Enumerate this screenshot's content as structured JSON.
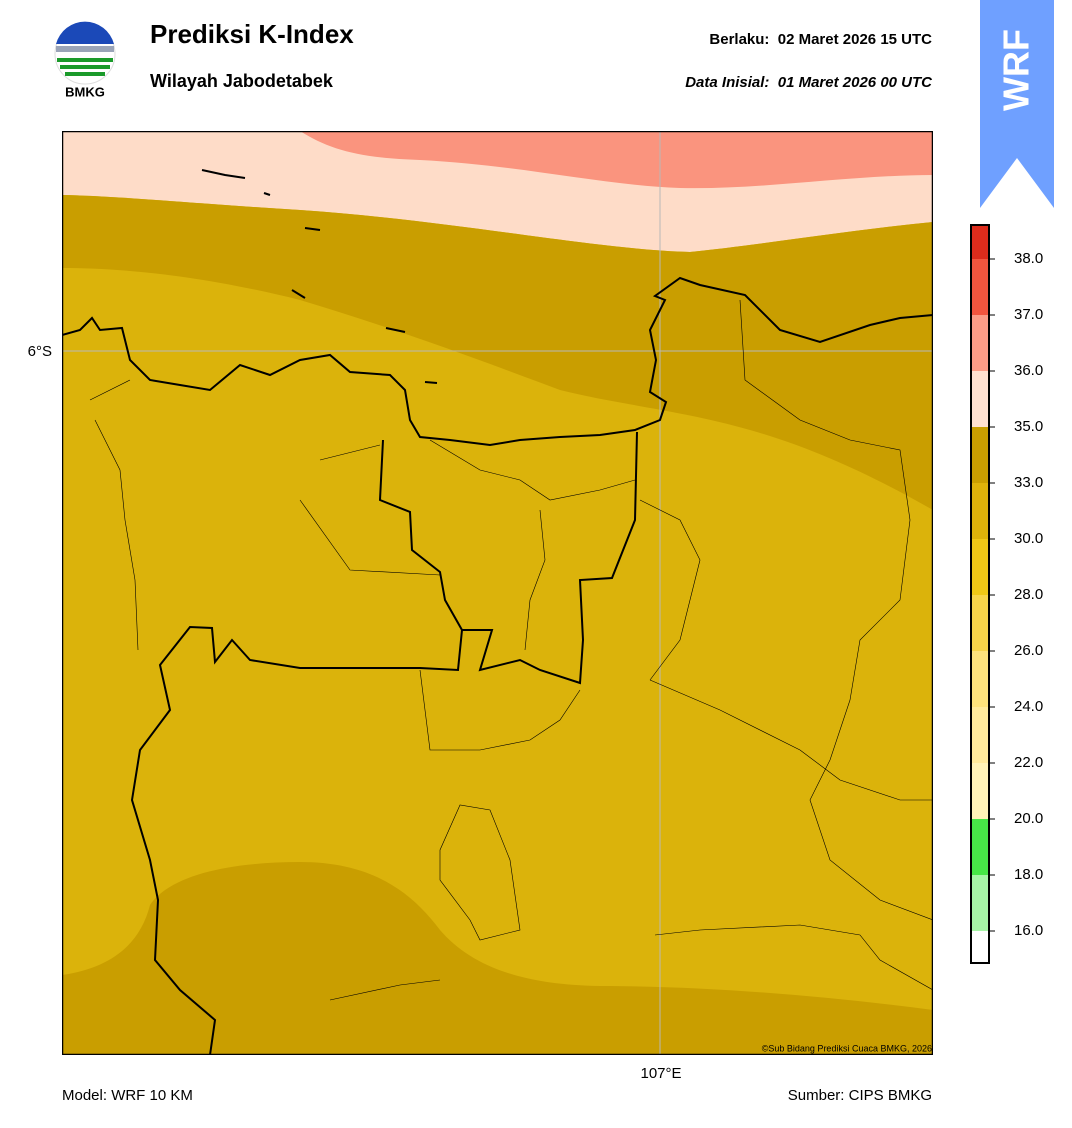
{
  "logo": {
    "label": "BMKG"
  },
  "header": {
    "title": "Prediksi K-Index",
    "subtitle": "Wilayah Jabodetabek",
    "valid": "Berlaku:  02 Maret 2026 15 UTC",
    "init": "Data Inisial:  01 Maret 2026 00 UTC"
  },
  "badge": "WRF",
  "map": {
    "lat_label": "6°S",
    "lon_label": "107°E",
    "credit": "©Sub Bidang Prediksi Cuaca BMKG, 2026"
  },
  "colorbar": {
    "labels": [
      "16.0",
      "18.0",
      "20.0",
      "22.0",
      "24.0",
      "26.0",
      "28.0",
      "30.0",
      "33.0",
      "35.0",
      "36.0",
      "37.0",
      "38.0"
    ],
    "colors": [
      "#ffffff",
      "#a6f5a6",
      "#47e647",
      "#fff3b8",
      "#ffea9c",
      "#fde27c",
      "#f7d44a",
      "#efc716",
      "#ddb20a",
      "#c99e00",
      "#fee0d0",
      "#fb9c86",
      "#f2553e",
      "#dd2c1c"
    ]
  },
  "footer": {
    "model": "Model: WRF 10 KM",
    "source": "Sumber: CIPS BMKG"
  }
}
